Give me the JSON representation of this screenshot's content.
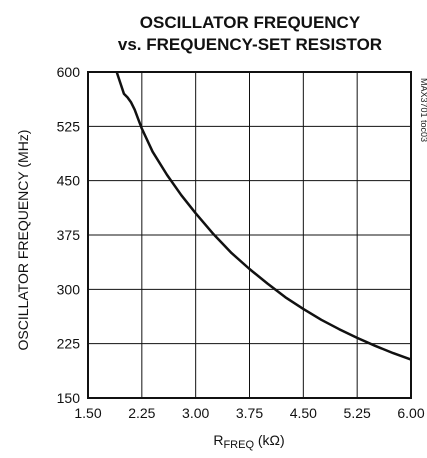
{
  "chart_data": {
    "type": "line",
    "title_line1": "OSCILLATOR FREQUENCY",
    "title_line2": "vs. FREQUENCY-SET RESISTOR",
    "ylabel": "OSCILLATOR FREQUENCY (MHz)",
    "xlabel_main": "R",
    "xlabel_sub": "FREQ",
    "xlabel_unit": " (kΩ)",
    "part_note": "MAX3701 toc03",
    "xlim": [
      1.5,
      6.0
    ],
    "ylim": [
      150,
      600
    ],
    "x_ticks": [
      "1.50",
      "2.25",
      "3.00",
      "3.75",
      "4.50",
      "5.25",
      "6.00"
    ],
    "y_ticks": [
      "600",
      "525",
      "450",
      "375",
      "300",
      "225",
      "150"
    ],
    "grid": true,
    "legend": "none",
    "line_color": "#111111",
    "series": [
      {
        "x": [
          1.9,
          1.95,
          2.0,
          2.05,
          2.1,
          2.15,
          2.2,
          2.25,
          2.4,
          2.6,
          2.8,
          3.0,
          3.25,
          3.5,
          3.75,
          4.0,
          4.25,
          4.5,
          4.75,
          5.0,
          5.25,
          5.5,
          5.75,
          6.0
        ],
        "y": [
          600,
          585,
          570,
          565,
          558,
          548,
          535,
          522,
          490,
          458,
          430,
          405,
          376,
          350,
          328,
          308,
          289,
          273,
          258,
          245,
          233,
          222,
          212,
          203
        ]
      }
    ]
  }
}
